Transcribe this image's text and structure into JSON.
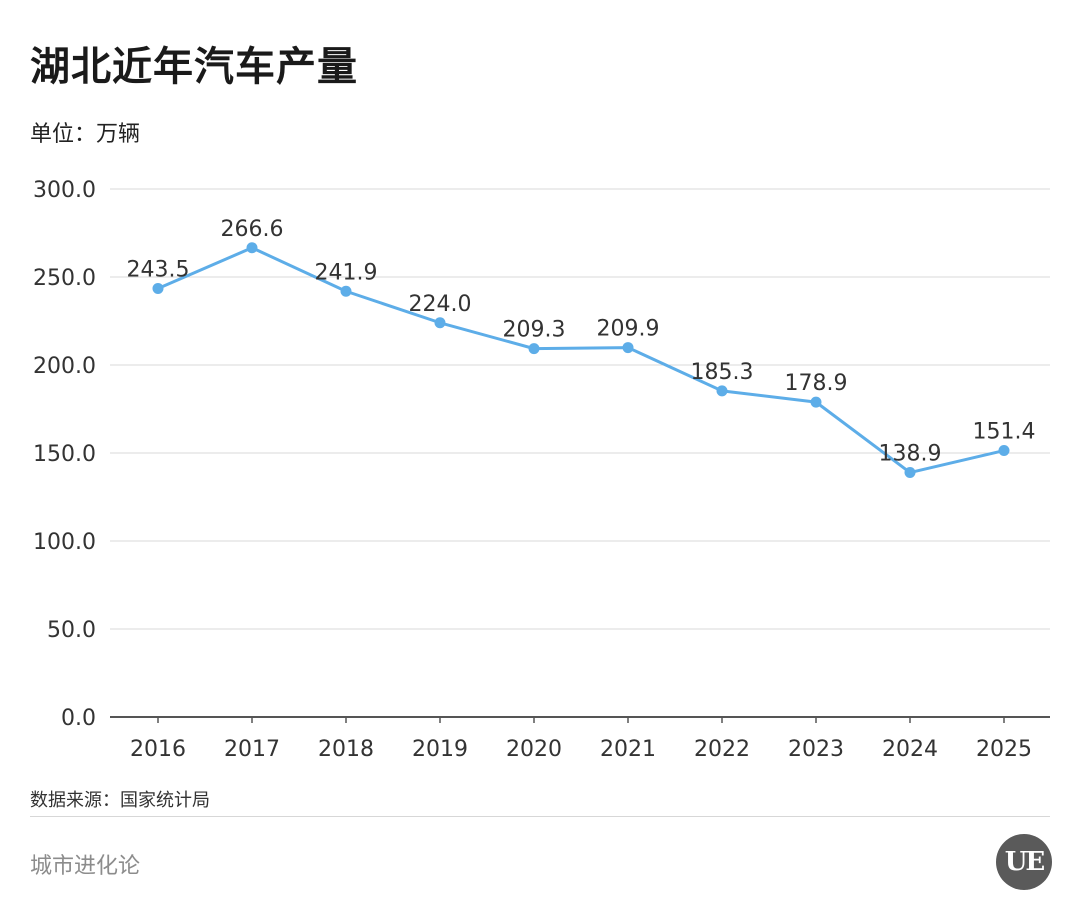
{
  "header": {
    "title": "湖北近年汽车产量",
    "unit": "单位：万辆"
  },
  "footer": {
    "source": "数据来源：国家统计局",
    "brand": "城市进化论",
    "logo_text": "UE"
  },
  "chart_data": {
    "type": "line",
    "title": "湖北近年汽车产量",
    "ylabel": "单位：万辆",
    "xlabel": "",
    "categories": [
      "2016",
      "2017",
      "2018",
      "2019",
      "2020",
      "2021",
      "2022",
      "2023",
      "2024",
      "2025"
    ],
    "series": [
      {
        "values": [
          243.5,
          266.6,
          241.9,
          224.0,
          209.3,
          209.9,
          185.3,
          178.9,
          138.9,
          151.4
        ],
        "labels": [
          "243.5",
          "266.6",
          "241.9",
          "224.0",
          "209.3",
          "209.9",
          "185.3",
          "178.9",
          "138.9",
          "151.4"
        ],
        "color": "#5dade8"
      }
    ],
    "ylim": [
      0,
      300
    ],
    "yticks": [
      "0.0",
      "50.0",
      "100.0",
      "150.0",
      "200.0",
      "250.0",
      "300.0"
    ],
    "grid": true,
    "legend": "none",
    "colors": {
      "line": "#5dade8",
      "grid": "#d9d9d9",
      "axis": "#555555",
      "text": "#333333"
    }
  }
}
